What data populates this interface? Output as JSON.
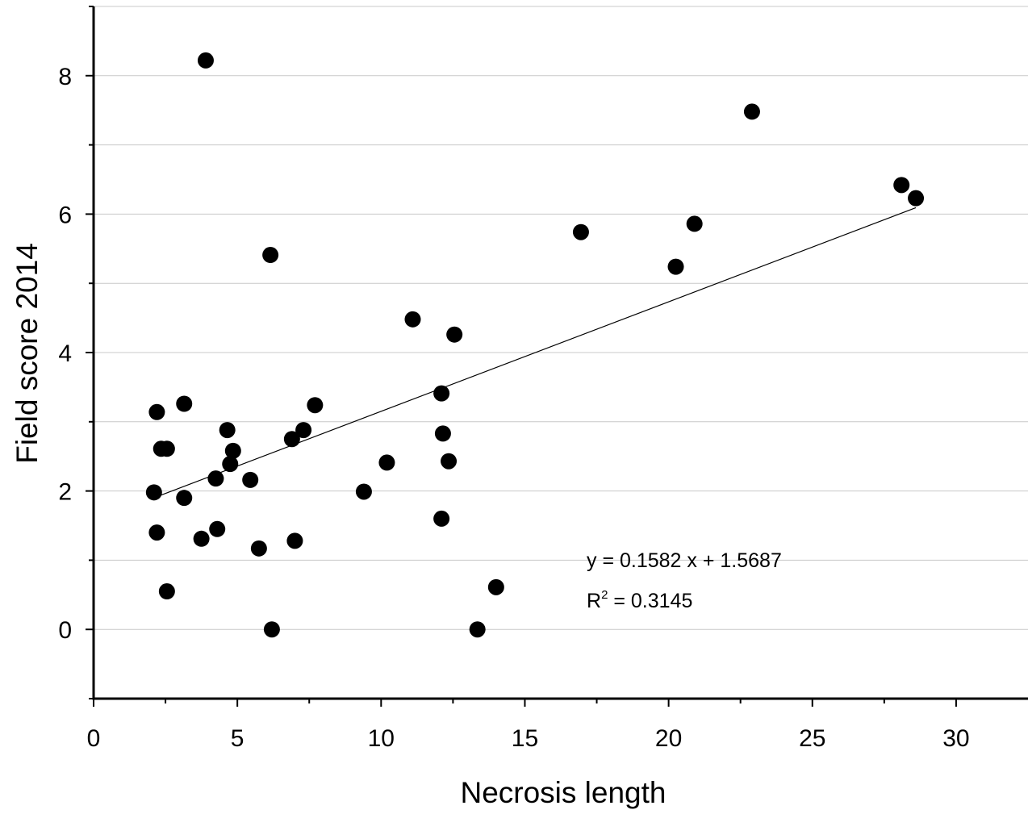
{
  "chart_data": {
    "type": "scatter",
    "xlabel": "Necrosis length",
    "ylabel": "Field score 2014",
    "xlim": [
      0,
      32.5
    ],
    "ylim": [
      -1,
      9
    ],
    "xticks": [
      0,
      5,
      10,
      15,
      20,
      25,
      30
    ],
    "xtick_labels": [
      "0",
      "5",
      "10",
      "15",
      "20",
      "25",
      "30"
    ],
    "yticks": [
      0,
      2,
      4,
      6,
      8
    ],
    "ytick_labels": [
      "0",
      "2",
      "4",
      "6",
      "8"
    ],
    "grid": "horizontal",
    "legend": "none",
    "series": [
      {
        "marker": "filled-circle",
        "color": "#000000",
        "points": [
          [
            3.9,
            8.22
          ],
          [
            22.9,
            7.48
          ],
          [
            28.1,
            6.42
          ],
          [
            28.6,
            6.23
          ],
          [
            16.95,
            5.74
          ],
          [
            20.9,
            5.86
          ],
          [
            20.25,
            5.24
          ],
          [
            6.15,
            5.41
          ],
          [
            11.1,
            4.48
          ],
          [
            12.55,
            4.26
          ],
          [
            12.1,
            3.41
          ],
          [
            2.2,
            3.14
          ],
          [
            3.15,
            3.26
          ],
          [
            7.7,
            3.24
          ],
          [
            4.65,
            2.88
          ],
          [
            7.3,
            2.88
          ],
          [
            6.9,
            2.75
          ],
          [
            12.15,
            2.83
          ],
          [
            2.35,
            2.61
          ],
          [
            2.55,
            2.61
          ],
          [
            4.85,
            2.58
          ],
          [
            4.75,
            2.39
          ],
          [
            10.2,
            2.41
          ],
          [
            12.35,
            2.43
          ],
          [
            4.25,
            2.18
          ],
          [
            5.45,
            2.16
          ],
          [
            2.1,
            1.98
          ],
          [
            9.4,
            1.99
          ],
          [
            3.15,
            1.9
          ],
          [
            12.1,
            1.6
          ],
          [
            2.2,
            1.4
          ],
          [
            4.3,
            1.45
          ],
          [
            3.75,
            1.31
          ],
          [
            7.0,
            1.28
          ],
          [
            5.75,
            1.17
          ],
          [
            2.55,
            0.55
          ],
          [
            14.0,
            0.61
          ],
          [
            6.2,
            0.0
          ],
          [
            13.35,
            0.0
          ]
        ]
      }
    ],
    "trendline": {
      "type": "linear",
      "slope": 0.1582,
      "intercept": 1.5687,
      "x_range": [
        2.1,
        28.6
      ]
    },
    "annotations": {
      "equation": "y = 0.1582 x + 1.5687",
      "r2_prefix": "R",
      "r2_sup": "2",
      "r2_value": " = 0.3145"
    }
  }
}
